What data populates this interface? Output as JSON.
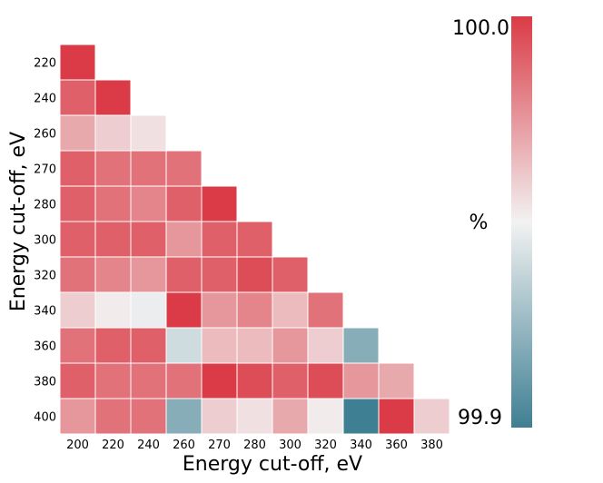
{
  "chart_data": {
    "type": "heatmap",
    "xlabel": "Energy cut-off, eV",
    "ylabel": "Energy cut-off, eV",
    "x_categories": [
      "200",
      "220",
      "240",
      "260",
      "270",
      "280",
      "300",
      "320",
      "340",
      "360",
      "380"
    ],
    "y_categories": [
      "220",
      "240",
      "260",
      "270",
      "280",
      "300",
      "320",
      "340",
      "360",
      "380",
      "400"
    ],
    "values": [
      [
        100.0
      ],
      [
        99.99,
        100.0
      ],
      [
        99.97,
        99.96,
        99.955
      ],
      [
        99.99,
        99.985,
        99.985,
        99.985
      ],
      [
        99.99,
        99.985,
        99.98,
        99.99,
        100.0
      ],
      [
        99.99,
        99.99,
        99.99,
        99.975,
        99.99,
        99.99
      ],
      [
        99.985,
        99.98,
        99.975,
        99.99,
        99.99,
        99.995,
        99.99
      ],
      [
        99.96,
        99.952,
        99.948,
        100.0,
        99.975,
        99.98,
        99.965,
        99.985
      ],
      [
        99.985,
        99.99,
        99.99,
        99.94,
        99.965,
        99.965,
        99.975,
        99.96,
        99.92
      ],
      [
        99.99,
        99.985,
        99.985,
        99.985,
        100.0,
        99.995,
        99.99,
        99.995,
        99.975,
        99.97
      ],
      [
        99.975,
        99.985,
        99.985,
        99.92,
        99.96,
        99.955,
        99.97,
        99.952,
        99.9,
        100.0,
        99.96
      ]
    ],
    "colorbar": {
      "label": "%",
      "max_label": "100.0",
      "min_label": "99.9",
      "vmin": 99.9,
      "vmax": 100.0,
      "colors": [
        "#3f7f93",
        "#f2f2f2",
        "#da3b46"
      ]
    }
  }
}
